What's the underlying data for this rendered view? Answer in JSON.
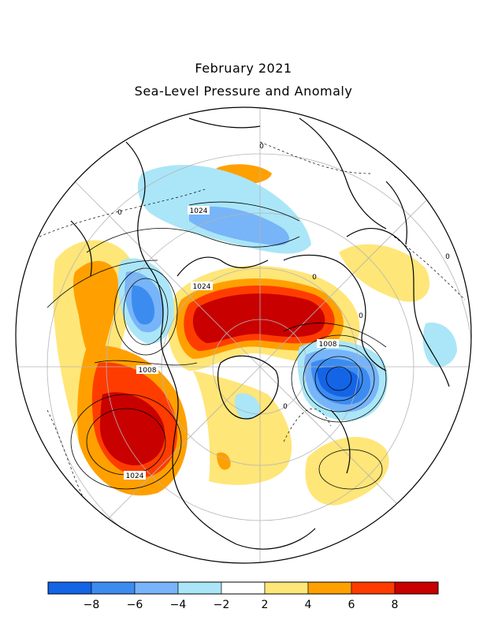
{
  "title": "February 2021",
  "subtitle": "Sea-Level Pressure and Anomaly",
  "contour_labels": [
    "1024",
    "1024",
    "1008",
    "1008",
    "1024",
    "0",
    "0",
    "0",
    "0",
    "0",
    "0"
  ],
  "colorbar": {
    "colors": [
      "#1464e6",
      "#3c8cf0",
      "#78b4f8",
      "#aae6f8",
      "#ffffff",
      "#ffe678",
      "#ffa000",
      "#ff3c00",
      "#c80000"
    ],
    "tick_labels": [
      "-8",
      "-6",
      "-4",
      "-2",
      "2",
      "4",
      "6",
      "8"
    ],
    "tick_values": [
      -8,
      -6,
      -4,
      -2,
      2,
      4,
      6,
      8
    ]
  }
}
